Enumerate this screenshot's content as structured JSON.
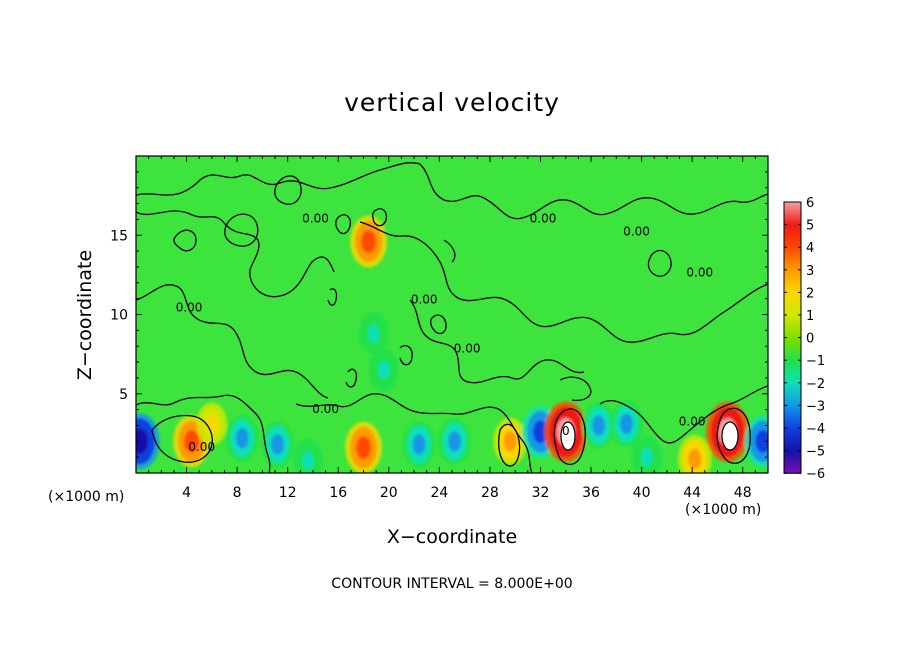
{
  "chart_data": {
    "type": "heatmap",
    "title": "vertical velocity",
    "xlabel": "X−coordinate",
    "ylabel": "Z−coordinate",
    "x_unit_left": "(×1000 m)",
    "x_unit_right": "(×1000 m)",
    "xlim": [
      0,
      50
    ],
    "ylim": [
      0,
      20
    ],
    "x_ticks": [
      4,
      8,
      12,
      16,
      20,
      24,
      28,
      32,
      36,
      40,
      44,
      48
    ],
    "x_tick_labels": [
      "4",
      "8",
      "12",
      "16",
      "20",
      "24",
      "28",
      "32",
      "36",
      "40",
      "44",
      "48"
    ],
    "y_ticks": [
      5,
      10,
      15
    ],
    "y_tick_labels": [
      "5",
      "10",
      "15"
    ],
    "colorbar": {
      "levels": [
        6,
        5,
        4,
        3,
        2,
        1,
        0,
        -1,
        -2,
        -3,
        -4,
        -5,
        -6
      ],
      "labels": [
        "6",
        "5",
        "4",
        "3",
        "2",
        "1",
        "0",
        "−1",
        "−2",
        "−3",
        "−4",
        "−5",
        "−6"
      ],
      "colors": [
        "#f4a0a0",
        "#f01818",
        "#ff4a00",
        "#ff9a00",
        "#f8d800",
        "#cfe800",
        "#7ee000",
        "#22e04a",
        "#10e0b8",
        "#1496e6",
        "#1040e0",
        "#1410a8",
        "#7a10b0"
      ]
    },
    "background_color": "#3ee43e",
    "features": [
      {
        "x": 0.3,
        "z": 2.0,
        "value": -5
      },
      {
        "x": 4.4,
        "z": 2.0,
        "value": 4
      },
      {
        "x": 6.0,
        "z": 3.1,
        "value": 2
      },
      {
        "x": 8.4,
        "z": 2.2,
        "value": -3
      },
      {
        "x": 11.2,
        "z": 1.8,
        "value": -3
      },
      {
        "x": 13.6,
        "z": 0.8,
        "value": -2
      },
      {
        "x": 18.0,
        "z": 1.6,
        "value": 4
      },
      {
        "x": 19.6,
        "z": 6.5,
        "value": -2
      },
      {
        "x": 18.8,
        "z": 8.8,
        "value": -2
      },
      {
        "x": 18.4,
        "z": 14.6,
        "value": 4
      },
      {
        "x": 22.4,
        "z": 1.8,
        "value": -3
      },
      {
        "x": 25.2,
        "z": 2.0,
        "value": -3
      },
      {
        "x": 29.6,
        "z": 2.0,
        "value": 3
      },
      {
        "x": 32.0,
        "z": 2.6,
        "value": -4
      },
      {
        "x": 34.0,
        "z": 2.6,
        "value": 6
      },
      {
        "x": 36.6,
        "z": 3.0,
        "value": -3
      },
      {
        "x": 38.8,
        "z": 3.1,
        "value": -3
      },
      {
        "x": 40.4,
        "z": 1.0,
        "value": -2
      },
      {
        "x": 44.2,
        "z": 0.9,
        "value": 3
      },
      {
        "x": 46.8,
        "z": 2.6,
        "value": 6
      },
      {
        "x": 49.6,
        "z": 2.0,
        "value": -4
      }
    ],
    "contour_labels": [
      {
        "x": 14.2,
        "z": 15.8,
        "text": "0.00"
      },
      {
        "x": 32.2,
        "z": 15.8,
        "text": "0.00"
      },
      {
        "x": 39.6,
        "z": 15.0,
        "text": "0.00"
      },
      {
        "x": 44.6,
        "z": 12.4,
        "text": "0.00"
      },
      {
        "x": 22.8,
        "z": 10.7,
        "text": "0.00"
      },
      {
        "x": 26.2,
        "z": 7.6,
        "text": "0.00"
      },
      {
        "x": 4.2,
        "z": 10.2,
        "text": "0.00"
      },
      {
        "x": 15.0,
        "z": 3.8,
        "text": "0.00"
      },
      {
        "x": 5.2,
        "z": 1.4,
        "text": "0.00"
      },
      {
        "x": 44.0,
        "z": 3.0,
        "text": "0.00"
      },
      {
        "x": 34.0,
        "z": 2.4,
        "text": "0"
      }
    ],
    "grid": false
  },
  "labels": {
    "title": "vertical velocity",
    "xlabel": "X−coordinate",
    "ylabel": "Z−coordinate",
    "unit_left": "(×1000 m)",
    "unit_right": "(×1000 m)",
    "contour_interval": "CONTOUR INTERVAL = 8.000E+00"
  }
}
